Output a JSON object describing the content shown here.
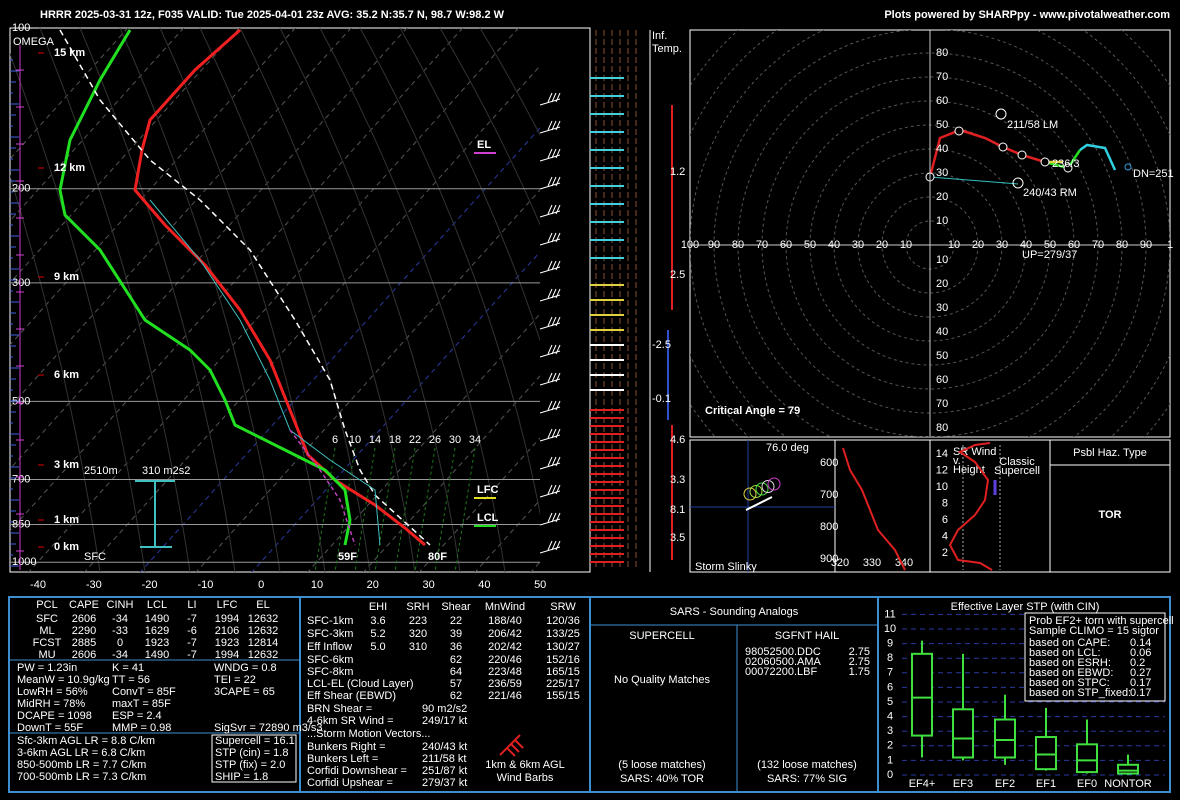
{
  "header": {
    "left": "HRRR 2025-03-31 12z, F035  VALID: Tue 2025-04-01 23z  AVG: 35.2 N:35.7 N, 98.7 W:98.2 W",
    "right": "Plots powered by SHARPpy - www.pivotalweather.com"
  },
  "skewt": {
    "omega": "OMEGA",
    "pressures": [
      "100",
      "200",
      "300",
      "500",
      "700",
      "850",
      "1000"
    ],
    "temps": [
      "-40",
      "-30",
      "-20",
      "-10",
      "0",
      "10",
      "20",
      "30",
      "40",
      "50"
    ],
    "heights": [
      "15 km",
      "12 km",
      "9 km",
      "6 km",
      "3 km",
      "1 km",
      "0 km"
    ],
    "mix": [
      "6",
      "10",
      "14",
      "18",
      "22",
      "26",
      "30",
      "34"
    ],
    "el": "EL",
    "lfc": "LFC",
    "lcl": "LCL",
    "td_sfc": "59F",
    "t_sfc": "80F",
    "sfc": "SFC",
    "eff_top": "2510m",
    "eff_srh": "310 m2s2"
  },
  "inferred": {
    "title": [
      "Inf.",
      "Temp."
    ],
    "values": [
      "1.2",
      "2.5",
      "-2.5",
      "-0.1",
      "4.6",
      "3.3",
      "8.1",
      "3.5"
    ]
  },
  "hodograph": {
    "up_ticks": [
      "80",
      "70",
      "60",
      "50",
      "40",
      "30",
      "20",
      "10"
    ],
    "down_ticks": [
      "10",
      "20",
      "30",
      "40",
      "50",
      "60",
      "70",
      "80"
    ],
    "left_ticks": [
      "100",
      "90",
      "80",
      "70",
      "60",
      "50",
      "40",
      "30",
      "20",
      "10"
    ],
    "right_ticks": [
      "10",
      "20",
      "30",
      "40",
      "50",
      "60",
      "70",
      "80",
      "90",
      "1"
    ],
    "lm": "211/58 LM",
    "rm": "240/43 RM",
    "dn": "DN=251",
    "upv": "UP=279/37",
    "mean": "236/3",
    "critical": "Critical Angle = 79"
  },
  "slinky": {
    "angle": "76.0 deg",
    "title": "Storm Slinky"
  },
  "thetae": {
    "pressures": [
      "600",
      "700",
      "800",
      "900"
    ],
    "temps": [
      "320",
      "330",
      "340"
    ]
  },
  "srwind": {
    "title": [
      "SR Wind",
      "v.",
      "Height"
    ],
    "note": [
      "Classic",
      "Supercell"
    ],
    "ticks": [
      "14",
      "12",
      "10",
      "8",
      "6",
      "4",
      "2"
    ]
  },
  "hazard": {
    "title": "Psbl Haz. Type",
    "value": "TOR"
  },
  "thermo": {
    "header": [
      "PCL",
      "CAPE",
      "CINH",
      "LCL",
      "LI",
      "LFC",
      "EL"
    ],
    "rows": [
      [
        "SFC",
        "2606",
        "-34",
        "1490",
        "-7",
        "1994",
        "12632"
      ],
      [
        "ML",
        "2290",
        "-33",
        "1629",
        "-6",
        "2106",
        "12632"
      ],
      [
        "FCST",
        "2885",
        "0",
        "1923",
        "-7",
        "1923",
        "12814"
      ],
      [
        "MU",
        "2606",
        "-34",
        "1490",
        "-7",
        "1994",
        "12632"
      ]
    ],
    "indices": [
      [
        "PW = 1.23in",
        "K = 41",
        "WNDG = 0.8"
      ],
      [
        "MeanW = 10.9g/kg",
        "TT = 56",
        "TEI = 22"
      ],
      [
        "LowRH = 56%",
        "ConvT = 85F",
        "3CAPE = 65"
      ],
      [
        "MidRH = 78%",
        "maxT = 85F"
      ],
      [
        "DCAPE = 1098",
        "ESP = 2.4"
      ],
      [
        "DownT = 55F",
        "MMP = 0.98",
        "SigSvr = 72890 m3/s3"
      ]
    ],
    "lapse": [
      "Sfc-3km AGL LR = 8.8 C/km",
      "3-6km AGL LR = 6.8 C/km",
      "850-500mb LR = 7.7 C/km",
      "700-500mb LR = 7.3 C/km"
    ],
    "params": [
      "Supercell = 16.1",
      "STP (cin) = 1.8",
      "STP (fix) = 2.0",
      "SHIP = 1.8"
    ]
  },
  "kinematics": {
    "header": [
      "EHI",
      "SRH",
      "Shear",
      "MnWind",
      "SRW"
    ],
    "rows": [
      [
        "SFC-1km",
        "3.6",
        "223",
        "22",
        "188/40",
        "120/36"
      ],
      [
        "SFC-3km",
        "5.2",
        "320",
        "39",
        "206/42",
        "133/25"
      ],
      [
        "Eff Inflow",
        "5.0",
        "310",
        "36",
        "202/42",
        "130/27"
      ]
    ],
    "shear_rows": [
      [
        "SFC-6km",
        "62",
        "220/46",
        "152/16"
      ],
      [
        "SFC-8km",
        "64",
        "223/48",
        "165/15"
      ],
      [
        "LCL-EL (Cloud Layer)",
        "57",
        "236/59",
        "225/17"
      ],
      [
        "Eff Shear (EBWD)",
        "62",
        "221/46",
        "155/15"
      ]
    ],
    "misc": [
      [
        "BRN Shear =",
        "90 m2/s2"
      ],
      [
        "4-6km SR Wind =",
        "249/17 kt"
      ]
    ],
    "motion_title": "...Storm Motion Vectors...",
    "motion": [
      [
        "Bunkers Right =",
        "240/43 kt"
      ],
      [
        "Bunkers Left =",
        "211/58 kt"
      ],
      [
        "Corfidi Downshear =",
        "251/87 kt"
      ],
      [
        "Corfidi Upshear =",
        "279/37 kt"
      ]
    ],
    "barbs": [
      "1km & 6km AGL",
      "Wind Barbs"
    ]
  },
  "sars": {
    "title": "SARS - Sounding Analogs",
    "supercell": "SUPERCELL",
    "hail": "SGFNT HAIL",
    "no_match": "No Quality Matches",
    "hail_matches": [
      [
        "98052500.DDC",
        "2.75"
      ],
      [
        "02060500.AMA",
        "2.75"
      ],
      [
        "00072200.LBF",
        "1.75"
      ]
    ],
    "sup_loose": "(5 loose matches)",
    "sup_result": "SARS: 40% TOR",
    "hail_loose": "(132 loose matches)",
    "hail_result": "SARS: 77% SIG"
  },
  "stp": {
    "title": "Effective Layer STP (with CIN)",
    "yticks": [
      "0",
      "1",
      "2",
      "3",
      "4",
      "5",
      "6",
      "7",
      "8",
      "9",
      "10",
      "11"
    ],
    "categories": [
      "EF4+",
      "EF3",
      "EF2",
      "EF1",
      "EF0",
      "NONTOR"
    ],
    "boxes": [
      {
        "whisker": [
          1.2,
          9.2
        ],
        "box": [
          2.7,
          8.3
        ],
        "median": 5.3
      },
      {
        "whisker": [
          1.0,
          8.3
        ],
        "box": [
          1.2,
          4.5
        ],
        "median": 2.5
      },
      {
        "whisker": [
          0.7,
          5.5
        ],
        "box": [
          1.2,
          3.8
        ],
        "median": 2.4
      },
      {
        "whisker": [
          0.3,
          4.6
        ],
        "box": [
          0.4,
          2.6
        ],
        "median": 1.4
      },
      {
        "whisker": [
          0.1,
          3.8
        ],
        "box": [
          0.2,
          2.1
        ],
        "median": 1.0
      },
      {
        "whisker": [
          0,
          1.4
        ],
        "box": [
          0.1,
          0.7
        ],
        "median": 0.3
      }
    ],
    "prob_title": [
      "Prob EF2+ torn with supercell",
      "Sample CLIMO = 15 sigtor"
    ],
    "prob": [
      [
        "based on CAPE:",
        "0.14"
      ],
      [
        "based on LCL:",
        "0.06"
      ],
      [
        "based on ESRH:",
        "0.2"
      ],
      [
        "based on EBWD:",
        "0.27"
      ],
      [
        "based on STPC:",
        "0.17"
      ],
      [
        "based on STP_fixed:",
        "0.17"
      ]
    ]
  }
}
